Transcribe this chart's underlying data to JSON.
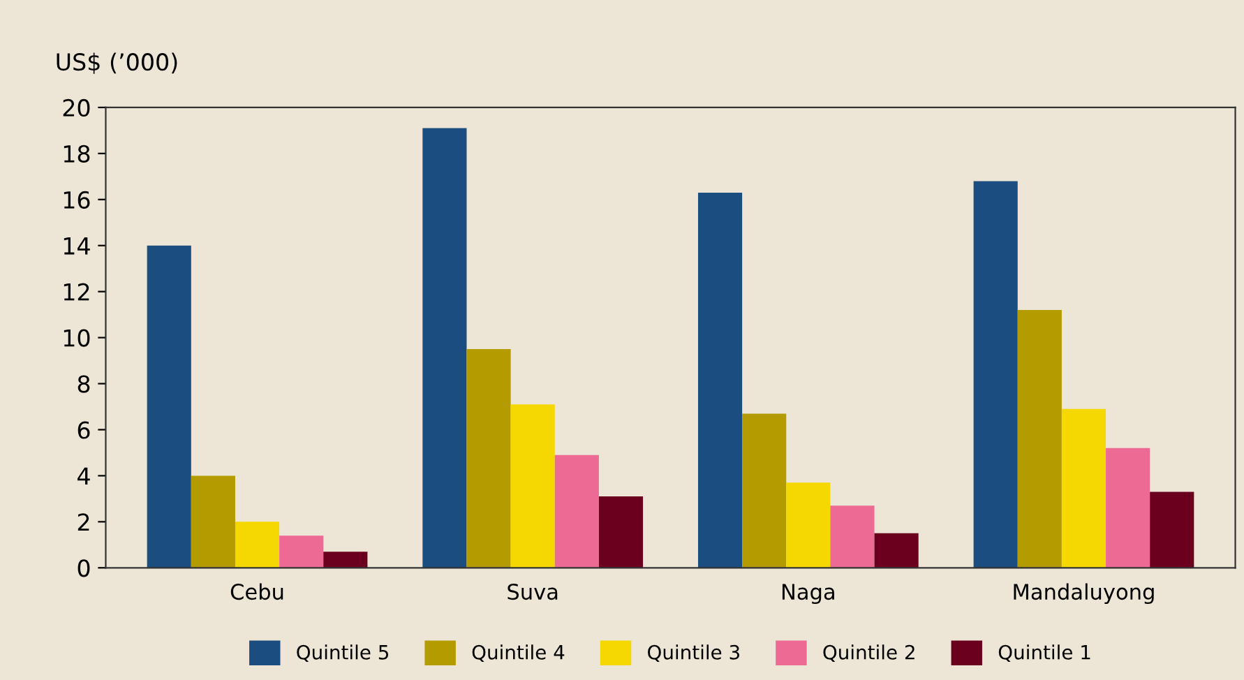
{
  "chart_data": {
    "type": "bar",
    "ylabel": "US$ (’000)",
    "categories": [
      "Cebu",
      "Suva",
      "Naga",
      "Mandaluyong"
    ],
    "series": [
      {
        "name": "Quintile 5",
        "color": "#1b4d80",
        "values": [
          14.0,
          19.1,
          16.3,
          16.8
        ]
      },
      {
        "name": "Quintile 4",
        "color": "#b39b00",
        "values": [
          4.0,
          9.5,
          6.7,
          11.2
        ]
      },
      {
        "name": "Quintile 3",
        "color": "#f5d800",
        "values": [
          2.0,
          7.1,
          3.7,
          6.9
        ]
      },
      {
        "name": "Quintile 2",
        "color": "#ed6a95",
        "values": [
          1.4,
          4.9,
          2.7,
          5.2
        ]
      },
      {
        "name": "Quintile 1",
        "color": "#6a001e",
        "values": [
          0.7,
          3.1,
          1.5,
          3.3
        ]
      }
    ],
    "ylim": [
      0,
      20
    ],
    "yticks": [
      0,
      2,
      4,
      6,
      8,
      10,
      12,
      14,
      16,
      18,
      20
    ],
    "grid": false,
    "legend": "bottom"
  }
}
